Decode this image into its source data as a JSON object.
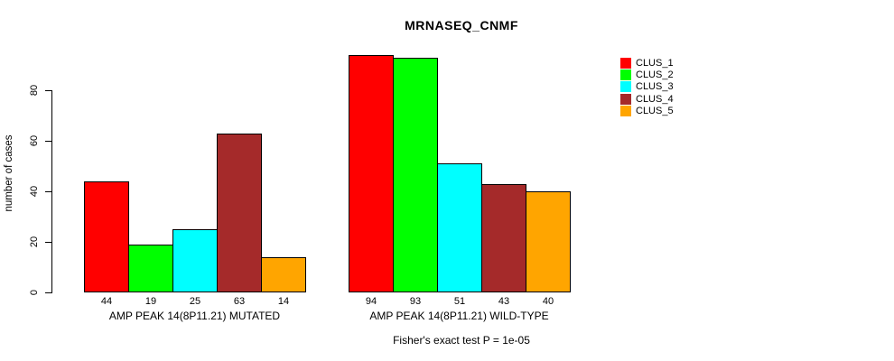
{
  "title": "MRNASEQ_CNMF",
  "y_axis_label": "number of cases",
  "annotation": "Fisher's exact test P = 1e-05",
  "chart_data": {
    "type": "bar",
    "title": "MRNASEQ_CNMF",
    "xlabel": "",
    "ylabel": "number of cases",
    "yticks": [
      0,
      20,
      40,
      60,
      80
    ],
    "ylim": [
      0,
      95
    ],
    "grid": false,
    "legend_position": "right",
    "annotation": "Fisher's exact test P = 1e-05",
    "categories": [
      "AMP PEAK 14(8P11.21) MUTATED",
      "AMP PEAK 14(8P11.21) WILD-TYPE"
    ],
    "series": [
      {
        "name": "CLUS_1",
        "color": "#FF0000",
        "values": [
          44,
          94
        ]
      },
      {
        "name": "CLUS_2",
        "color": "#00FF00",
        "values": [
          19,
          93
        ]
      },
      {
        "name": "CLUS_3",
        "color": "#00FFFF",
        "values": [
          25,
          51
        ]
      },
      {
        "name": "CLUS_4",
        "color": "#A52A2A",
        "values": [
          63,
          43
        ]
      },
      {
        "name": "CLUS_5",
        "color": "#FFA500",
        "values": [
          14,
          40
        ]
      }
    ],
    "bar_value_labels_shown": true
  }
}
